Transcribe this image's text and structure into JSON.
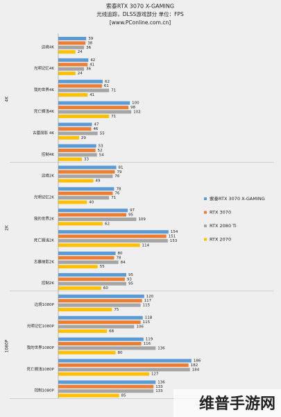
{
  "chart_data": {
    "type": "grouped-hbar",
    "title": "索泰RTX 3070 X-GAMING",
    "subtitle": "光线追踪，DLSS游戏部分  单位：FPS",
    "source": "[www.PConline.com.cn]",
    "groups": [
      {
        "label": "4K",
        "categories": [
          "边境4K",
          "光明记忆4K",
          "我的世界4K",
          "死亡搁浅4K",
          "古墓丽影 4K",
          "控制4K"
        ]
      },
      {
        "label": "2K",
        "categories": [
          "边境2K",
          "光明记忆2K",
          "我的世界2K",
          "死亡搁浅2K",
          "古墓丽影2K",
          "控制2K"
        ]
      },
      {
        "label": "1080P",
        "categories": [
          "边境1080P",
          "光明记忆1080P",
          "我的世界1080P",
          "死亡搁浅1080P",
          "控制1080P"
        ]
      }
    ],
    "series": [
      {
        "name": "索泰RTX 3070 X-GAMING",
        "color": "#5b9bd5",
        "values": [
          39,
          42,
          62,
          100,
          47,
          53,
          81,
          78,
          97,
          154,
          80,
          95,
          120,
          118,
          119,
          186,
          136
        ]
      },
      {
        "name": "RTX 3070",
        "color": "#ed7d31",
        "values": [
          38,
          41,
          61,
          98,
          46,
          52,
          79,
          76,
          95,
          151,
          78,
          93,
          117,
          115,
          116,
          182,
          133
        ]
      },
      {
        "name": "RTX 2080 Ti",
        "color": "#a5a5a5",
        "values": [
          36,
          36,
          71,
          102,
          55,
          54,
          76,
          71,
          109,
          153,
          84,
          95,
          115,
          106,
          136,
          184,
          133
        ]
      },
      {
        "name": "RTX 2070",
        "color": "#ffc000",
        "values": [
          24,
          24,
          41,
          71,
          29,
          33,
          49,
          40,
          62,
          114,
          55,
          60,
          75,
          68,
          80,
          127,
          85
        ]
      }
    ],
    "xlim": [
      0,
      190
    ]
  },
  "watermark": "维普手游网"
}
